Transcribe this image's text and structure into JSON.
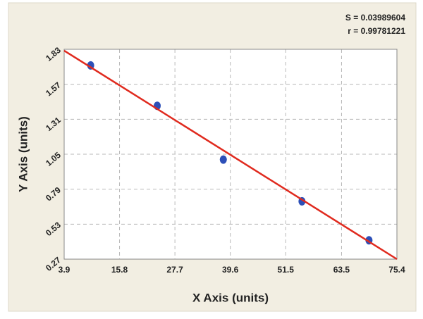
{
  "chart_data": {
    "type": "scatter",
    "annotations": [
      "S = 0.03989604",
      "r = 0.99781221"
    ],
    "x_label": "X Axis (units)",
    "y_label": "Y Axis (units)",
    "xlim": [
      3.9,
      75.4
    ],
    "ylim": [
      0.27,
      1.83
    ],
    "xticks": [
      3.9,
      15.8,
      27.7,
      39.6,
      51.5,
      63.5,
      75.4
    ],
    "yticks": [
      0.27,
      0.53,
      0.79,
      1.05,
      1.31,
      1.57,
      1.83
    ],
    "grid": true,
    "series": [
      {
        "kind": "points",
        "color": "#2c4fb8",
        "x": [
          9.6,
          23.9,
          38.1,
          55.0,
          69.4
        ],
        "values": [
          1.71,
          1.41,
          1.01,
          0.7,
          0.41
        ]
      },
      {
        "kind": "line",
        "color": "#e02a1e",
        "x": [
          3.9,
          75.4
        ],
        "values": [
          1.82,
          0.27
        ]
      }
    ]
  }
}
